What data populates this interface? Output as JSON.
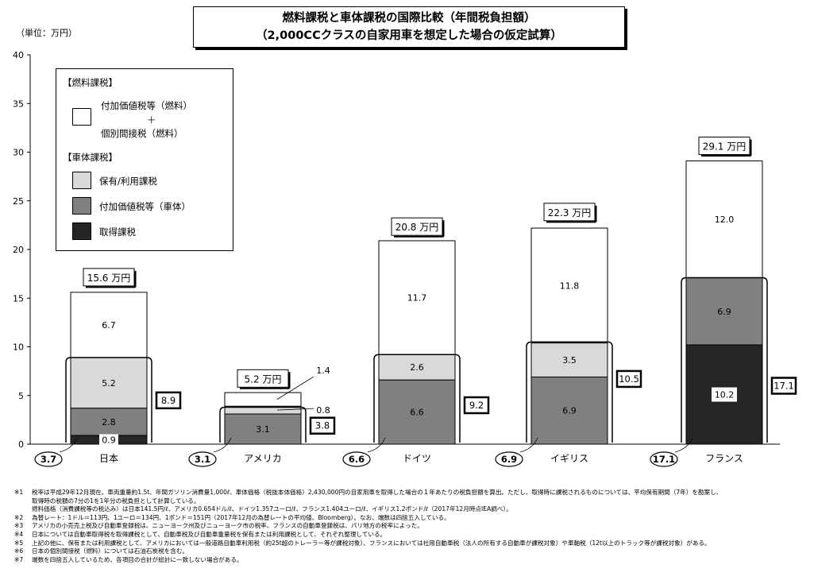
{
  "title": {
    "line1": "燃料課税と車体課税の国際比較（年間税負担額）",
    "line2": "（2,000CCクラスの自家用車を想定した場合の仮定試算）"
  },
  "unit_label": "（単位：万円）",
  "legend": {
    "fuel_header": "【燃料課税】",
    "fuel_label_1": "付加価値税等（燃料）",
    "fuel_label_plus": "＋",
    "fuel_label_2": "個別間接税（燃料）",
    "body_header": "【車体課税】",
    "hold_label": "保有/利用課税",
    "vat_label": "付加価値税等（車体）",
    "acq_label": "取得課税"
  },
  "colors": {
    "fuel": "#ffffff",
    "hold": "#d9d9d9",
    "vat": "#808080",
    "acq": "#262626"
  },
  "chart_data": {
    "type": "bar",
    "stacked": true,
    "ylim": [
      0,
      40
    ],
    "yticks": [
      "0",
      "5",
      "10",
      "15",
      "20",
      "25",
      "30",
      "35",
      "40"
    ],
    "categories": [
      "日本",
      "アメリカ",
      "ドイツ",
      "イギリス",
      "フランス"
    ],
    "series": [
      {
        "name": "取得課税",
        "key": "acq",
        "values": [
          0.9,
          0,
          0,
          0,
          10.2
        ]
      },
      {
        "name": "付加価値税等（車体）",
        "key": "vat",
        "values": [
          2.8,
          3.1,
          6.6,
          6.9,
          6.9
        ]
      },
      {
        "name": "保有/利用課税",
        "key": "hold",
        "values": [
          5.2,
          0.8,
          2.6,
          3.5,
          0
        ]
      },
      {
        "name": "付加価値税等（燃料）＋個別間接税（燃料）",
        "key": "fuel",
        "values": [
          6.7,
          1.4,
          11.7,
          11.8,
          12.0
        ]
      }
    ],
    "segment_labels": [
      [
        "0.9",
        "2.8",
        "5.2",
        "6.7"
      ],
      [
        "",
        "3.1",
        "0.8",
        "1.4"
      ],
      [
        "",
        "6.6",
        "2.6",
        "11.7"
      ],
      [
        "",
        "6.9",
        "3.5",
        "11.8"
      ],
      [
        "10.2",
        "6.9",
        "",
        "12.0"
      ]
    ],
    "totals": [
      15.6,
      5.2,
      20.8,
      22.3,
      29.1
    ],
    "total_labels": [
      "15.6 万円",
      "5.2 万円",
      "20.8 万円",
      "22.3 万円",
      "29.1 万円"
    ],
    "body_totals": [
      8.9,
      3.8,
      9.2,
      10.5,
      17.1
    ],
    "body_total_labels": [
      "8.9",
      "3.8",
      "9.2",
      "10.5",
      "17.1"
    ],
    "acq_vat_totals": [
      3.7,
      3.1,
      6.6,
      6.9,
      17.1
    ],
    "acq_vat_labels": [
      "3.7",
      "3.1",
      "6.6",
      "6.9",
      "17.1"
    ]
  },
  "notes": [
    {
      "mark": "※1",
      "text": "税率は平成29年12月現在。車両重量約1.5t、年間ガソリン消費量1,000ℓ、車体価格（税抜本体価格）2,430,000円の自家用車を取得した場合の１年あたりの税負担額を算出。ただし、取得時に課税されるものについては、平均保有期間（7年）を勘案し、"
    },
    {
      "mark": "",
      "text": "取得時の税額の7分の1を1年分の税負担として計算している。"
    },
    {
      "mark": "",
      "text": "燃料価格（消費課税等の税込み）は日本141.5円/ℓ、アメリカ0.654ドル/ℓ、ドイツ1.357ユーロ/ℓ、フランス1.404ユーロ/ℓ、イギリス1.2ポンド/ℓ（2017年12月時点IEA調べ）。"
    },
    {
      "mark": "※2",
      "text": "為替レート：1ドル＝113円、1ユーロ＝134円、1ポンド＝151円（2017年12月の為替レートの平均値、Bloomberg）。なお、端数は四捨五入している。"
    },
    {
      "mark": "※3",
      "text": "アメリカの小売売上税及び自動車登録税は、ニューヨーク州及びニューヨーク市の税率、フランスの自動車登録税は、パリ地方の税率によった。"
    },
    {
      "mark": "※4",
      "text": "日本については自動車取得税を取得課税として、自動車税及び自動車重量税を保有または利用課税として、それぞれ整理している。"
    },
    {
      "mark": "※5",
      "text": "上記の他に、保有または利用課税として、アメリカにおいては一般道路自動車利用税（約25t超のトレーラー等が課税対象）、フランスにおいては社用自動車税（法人の所有する自動車が課税対象）や車軸税（12t以上のトラック等が課税対象）がある。"
    },
    {
      "mark": "※6",
      "text": "日本の個別間接税（燃料）については石油石炭税を含む。"
    },
    {
      "mark": "※7",
      "text": "端数を四捨五入しているため、各項目の合計が総計に一致しない場合がある。"
    }
  ]
}
